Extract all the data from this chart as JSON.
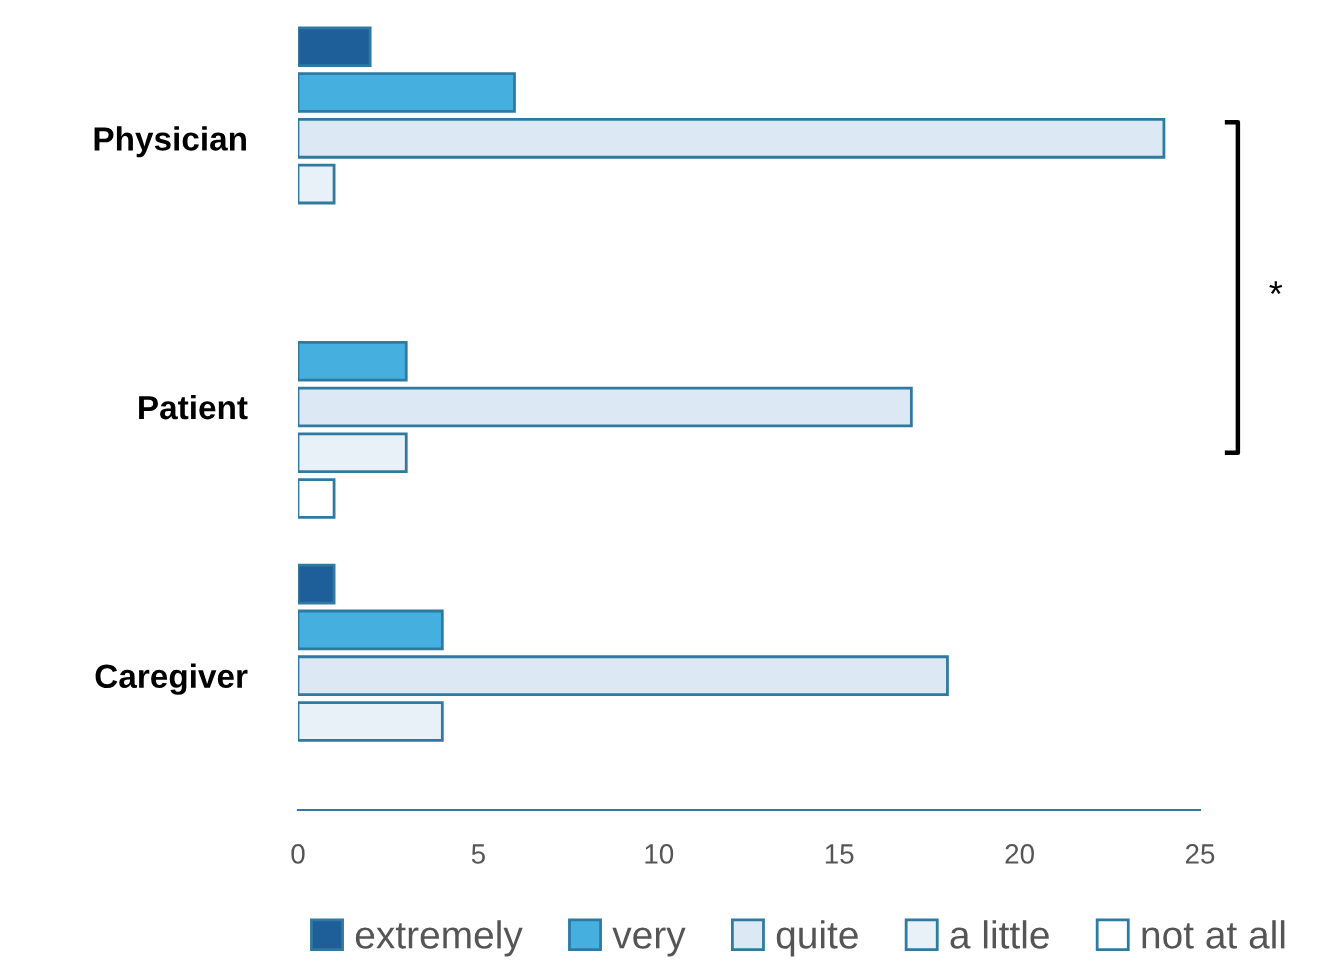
{
  "chart_data": {
    "type": "bar",
    "orientation": "horizontal",
    "categories": [
      "Physician",
      "Patient",
      "Caregiver"
    ],
    "series": [
      {
        "name": "extremely",
        "color": "#1f5f99",
        "values": [
          2,
          0,
          1
        ]
      },
      {
        "name": "very",
        "color": "#45b0e0",
        "values": [
          6,
          3,
          4
        ]
      },
      {
        "name": "quite",
        "color": "#dce9f5",
        "values": [
          24,
          17,
          18
        ]
      },
      {
        "name": "a little",
        "color": "#e8f0f8",
        "values": [
          1,
          3,
          4
        ]
      },
      {
        "name": "not at all",
        "color": "#ffffff",
        "values": [
          0,
          1,
          0
        ]
      }
    ],
    "xlim": [
      0,
      25
    ],
    "xticks": [
      0,
      5,
      10,
      15,
      20,
      25
    ],
    "annotations": [
      "*"
    ],
    "legend": "bottom",
    "grid": false
  }
}
